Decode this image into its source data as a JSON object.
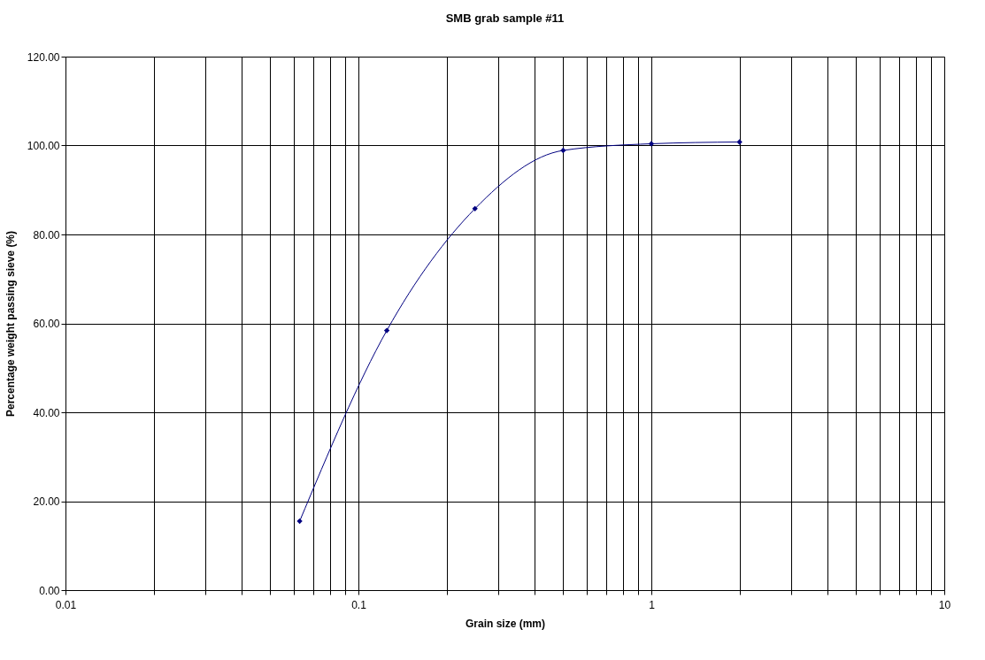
{
  "chart_data": {
    "type": "line",
    "title": "SMB grab sample #11",
    "xlabel": "Grain size (mm)",
    "ylabel": "Percentage weight passing sieve (%)",
    "x": [
      0.063,
      0.125,
      0.25,
      0.5,
      1,
      2
    ],
    "series": [
      {
        "color": "#000080",
        "values": [
          15.5,
          58.4,
          85.8,
          98.9,
          100.4,
          100.8
        ]
      }
    ],
    "log": "x",
    "xlim": [
      0.01,
      10
    ],
    "xticks": [
      0.01,
      {
        "value": 0.02,
        "label": null
      },
      {
        "value": 0.03,
        "label": null
      },
      {
        "value": 0.04,
        "label": null
      },
      {
        "value": 0.05,
        "label": null
      },
      {
        "value": 0.06,
        "label": null
      },
      {
        "value": 0.07,
        "label": null
      },
      {
        "value": 0.08,
        "label": null
      },
      {
        "value": 0.09,
        "label": null
      },
      0.1,
      {
        "value": 0.2,
        "label": null
      },
      {
        "value": 0.3,
        "label": null
      },
      {
        "value": 0.4,
        "label": null
      },
      {
        "value": 0.5,
        "label": null
      },
      {
        "value": 0.6,
        "label": null
      },
      {
        "value": 0.7,
        "label": null
      },
      {
        "value": 0.8,
        "label": null
      },
      {
        "value": 0.9,
        "label": null
      },
      1,
      {
        "value": 2,
        "label": null
      },
      {
        "value": 3,
        "label": null
      },
      {
        "value": 4,
        "label": null
      },
      {
        "value": 5,
        "label": null
      },
      {
        "value": 6,
        "label": null
      },
      {
        "value": 7,
        "label": null
      },
      {
        "value": 8,
        "label": null
      },
      {
        "value": 9,
        "label": null
      },
      10
    ],
    "ylim": [
      0,
      120
    ],
    "yticks": [
      {
        "value": 0,
        "label": "0.00"
      },
      {
        "value": 20,
        "label": "20.00"
      },
      {
        "value": 40,
        "label": "40.00"
      },
      {
        "value": 60,
        "label": "60.00"
      },
      {
        "value": 80,
        "label": "80.00"
      },
      {
        "value": 100,
        "label": "100.00"
      },
      {
        "value": 120,
        "label": "120.00"
      }
    ],
    "grid": true,
    "marker": "diamond",
    "line_style": "solid"
  }
}
